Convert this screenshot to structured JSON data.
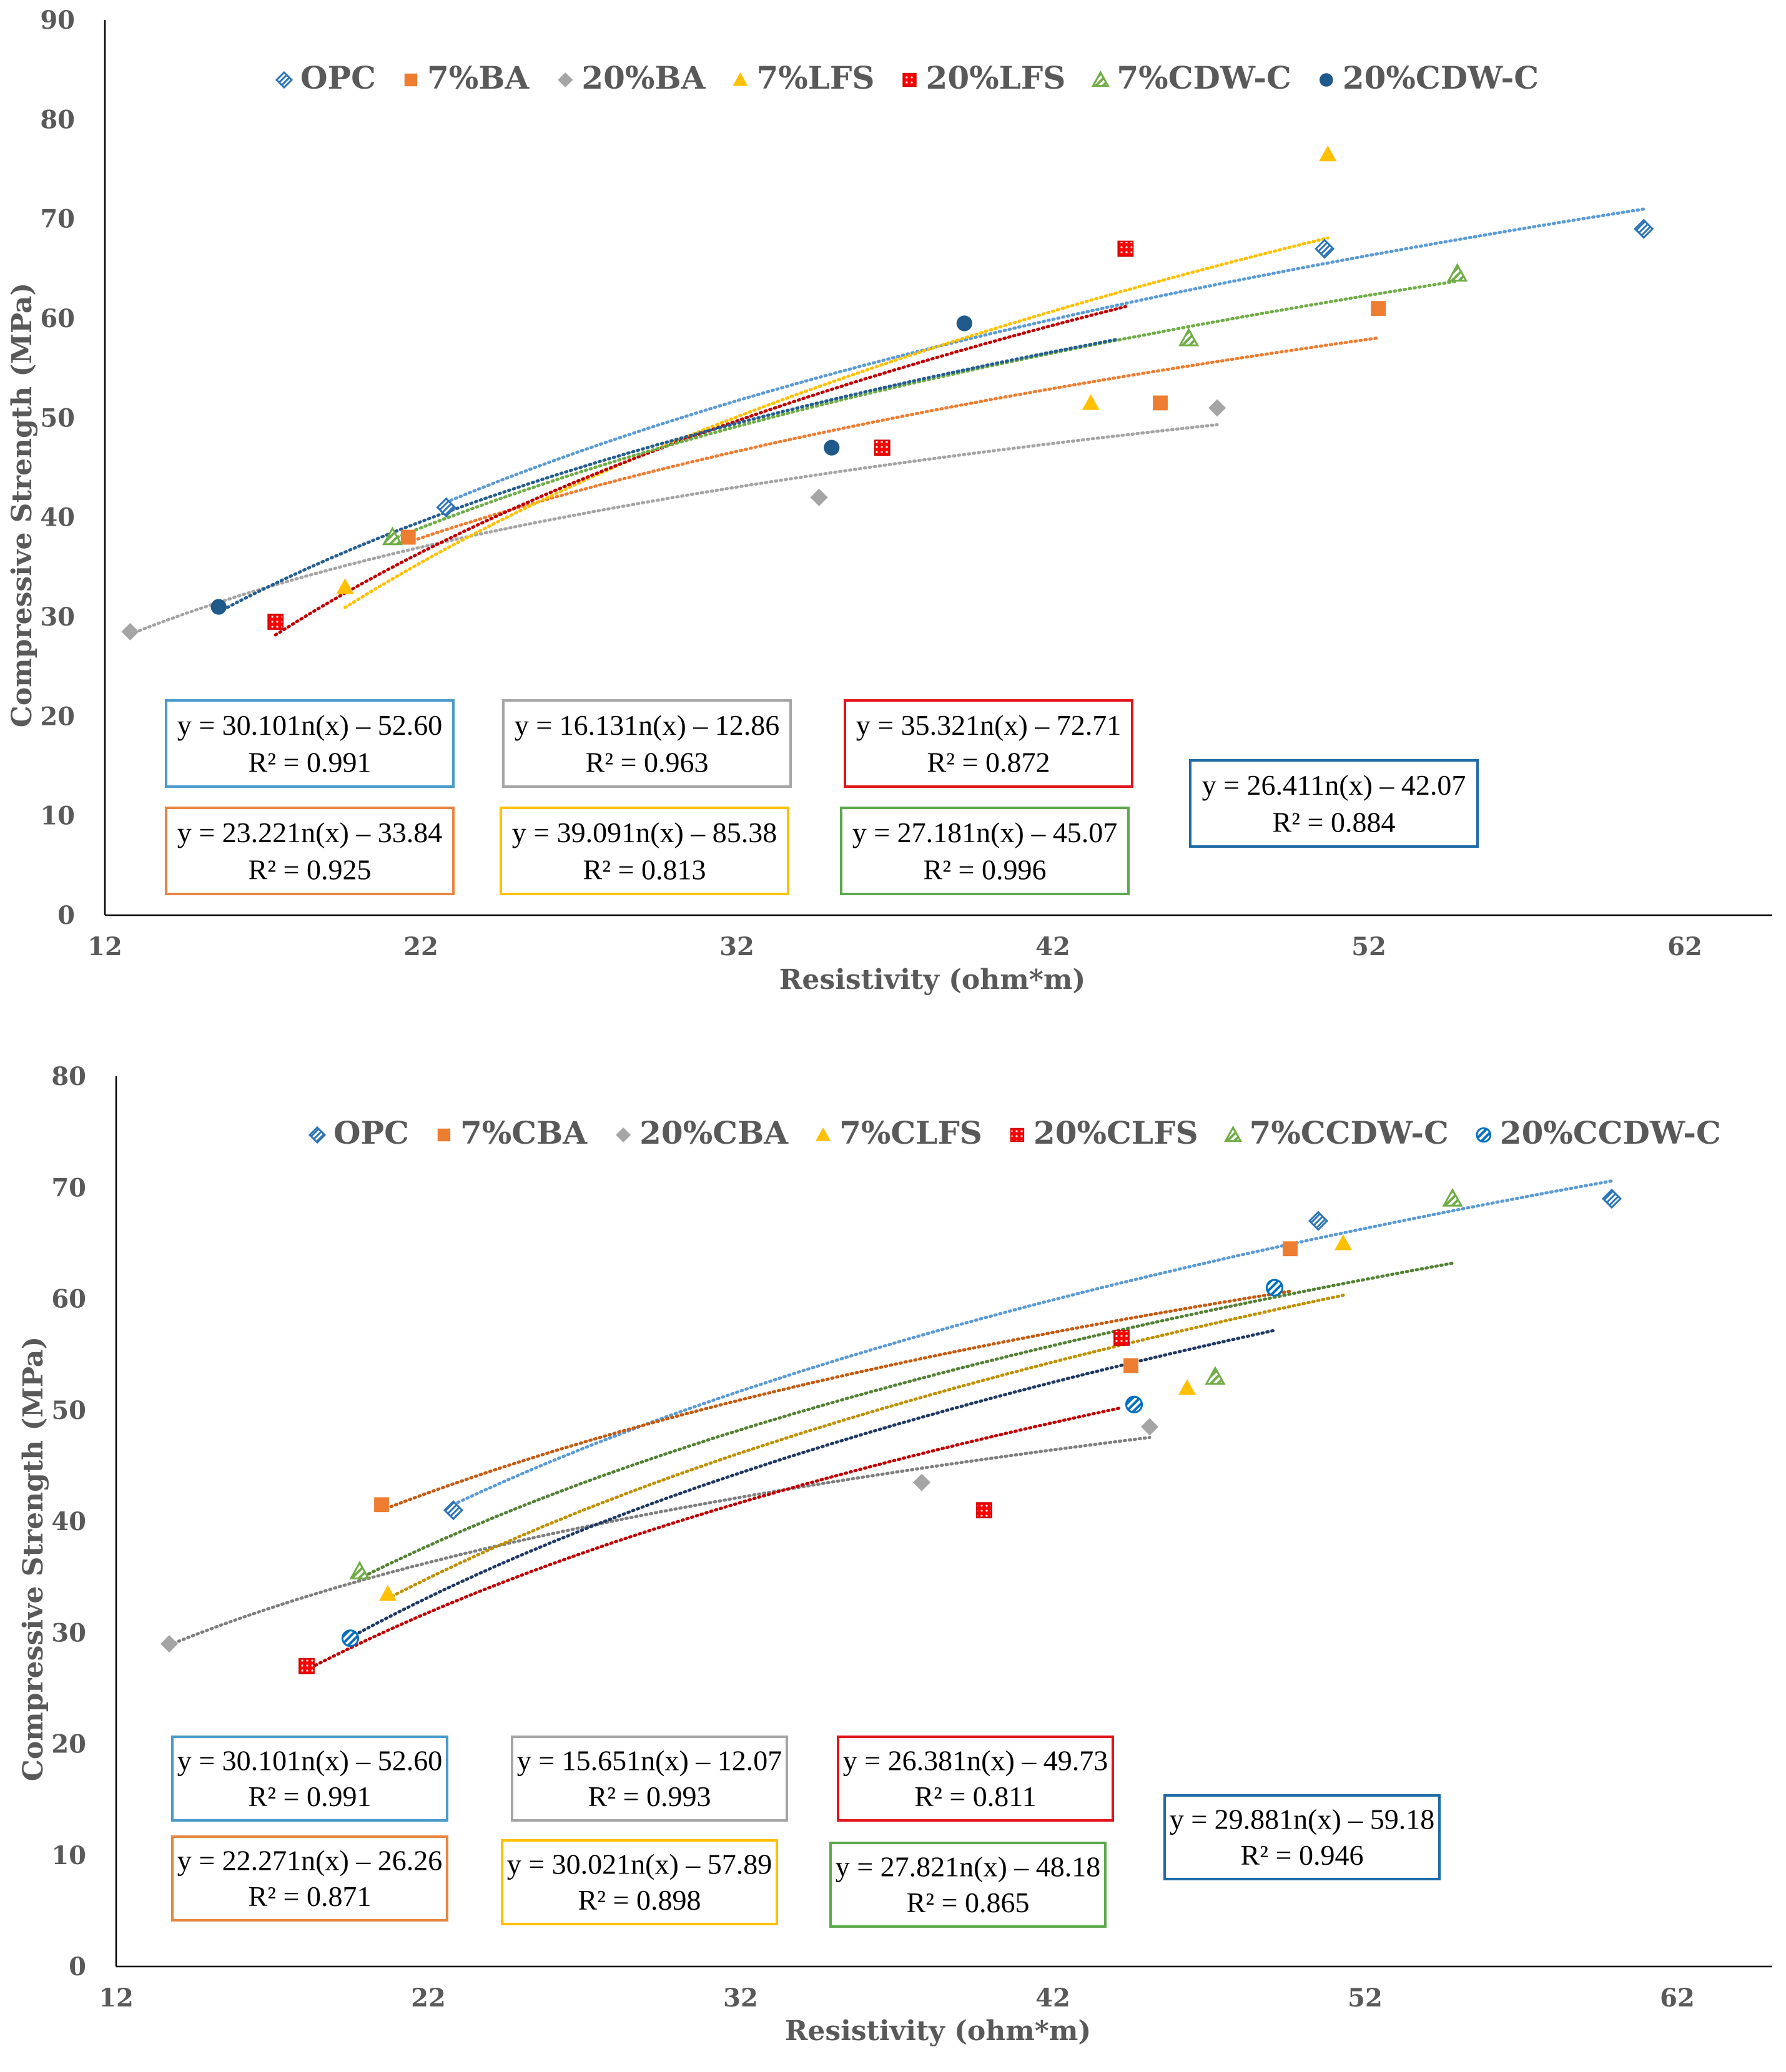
{
  "chart_data": [
    {
      "type": "scatter",
      "title": "",
      "xlabel": "Resistivity (ohm*m)",
      "ylabel": "Compressive Strength (MPa)",
      "xlim": [
        12,
        65
      ],
      "ylim": [
        0,
        90
      ],
      "x_ticks": [
        "12",
        "22",
        "32",
        "42",
        "52",
        "62"
      ],
      "y_ticks": [
        "0",
        "10",
        "20",
        "30",
        "40",
        "50",
        "60",
        "70",
        "80",
        "90"
      ],
      "legend_position": "top",
      "series": [
        {
          "name": "OPC",
          "marker": "diamond-open",
          "color": "#2E75B6",
          "trend_color": "#5B9BD5",
          "points": [
            [
              22.8,
              41
            ],
            [
              50.6,
              67
            ],
            [
              60.7,
              69
            ]
          ],
          "fit": {
            "a": 30.1,
            "b": -52.6,
            "range": [
              22.8,
              60.7
            ]
          },
          "equation": "y = 30.101n(x) – 52.60",
          "r2": "R² = 0.991",
          "box_color": "#4A9BCB"
        },
        {
          "name": "7%BA",
          "marker": "square",
          "color": "#ED7D31",
          "trend_color": "#ED7D31",
          "points": [
            [
              21.6,
              38
            ],
            [
              45.4,
              51.5
            ],
            [
              52.3,
              61
            ]
          ],
          "fit": {
            "a": 23.22,
            "b": -33.84,
            "range": [
              21.6,
              52.3
            ]
          },
          "equation": "y = 23.221n(x) – 33.84",
          "r2": "R² = 0.925",
          "box_color": "#E88541"
        },
        {
          "name": "20%BA",
          "marker": "diamond",
          "color": "#A5A5A5",
          "trend_color": "#A5A5A5",
          "points": [
            [
              12.8,
              28.5
            ],
            [
              34.6,
              42
            ],
            [
              47.2,
              51
            ]
          ],
          "fit": {
            "a": 16.13,
            "b": -12.86,
            "range": [
              12.8,
              47.2
            ]
          },
          "equation": "y = 16.131n(x) – 12.86",
          "r2": "R² = 0.963",
          "box_color": "#A5A5A5"
        },
        {
          "name": "7%LFS",
          "marker": "triangle",
          "color": "#FFC000",
          "trend_color": "#FFC000",
          "points": [
            [
              19.6,
              33
            ],
            [
              43.2,
              51.5
            ],
            [
              50.7,
              76.5
            ]
          ],
          "fit": {
            "a": 39.09,
            "b": -85.38,
            "range": [
              19.6,
              50.7
            ]
          },
          "equation": "y = 39.091n(x) – 85.38",
          "r2": "R² = 0.813",
          "box_color": "#FFC000"
        },
        {
          "name": "20%LFS",
          "marker": "square-dotted",
          "color": "#FF0000",
          "trend_color": "#C00000",
          "points": [
            [
              17.4,
              29.5
            ],
            [
              36.6,
              47
            ],
            [
              44.3,
              67
            ]
          ],
          "fit": {
            "a": 35.32,
            "b": -72.71,
            "range": [
              17.4,
              44.3
            ]
          },
          "equation": "y = 35.321n(x) – 72.71",
          "r2": "R² = 0.872",
          "box_color": "#E2141B"
        },
        {
          "name": "7%CDW-C",
          "marker": "triangle-hatched",
          "color": "#70AD47",
          "trend_color": "#70AD47",
          "points": [
            [
              21.1,
              38
            ],
            [
              46.3,
              58
            ],
            [
              54.8,
              64.5
            ]
          ],
          "fit": {
            "a": 27.18,
            "b": -45.07,
            "range": [
              21.1,
              54.8
            ]
          },
          "equation": "y = 27.181n(x) – 45.07",
          "r2": "R² = 0.996",
          "box_color": "#5DA84C"
        },
        {
          "name": "20%CDW-C",
          "marker": "circle",
          "color": "#1F5A8A",
          "trend_color": "#255E91",
          "points": [
            [
              15.6,
              31
            ],
            [
              35.0,
              47
            ],
            [
              39.2,
              59.5
            ]
          ],
          "fit": {
            "a": 26.41,
            "b": -42.07,
            "range": [
              15.6,
              44.0
            ]
          },
          "equation": "y = 26.411n(x) – 42.07",
          "r2": "R² = 0.884",
          "box_color": "#1E6AA6"
        }
      ]
    },
    {
      "type": "scatter",
      "title": "",
      "xlabel": "Resistivity (ohm*m)",
      "ylabel": "Compressive Strength (MPa)",
      "xlim": [
        12,
        64.5
      ],
      "ylim": [
        0,
        80
      ],
      "x_ticks": [
        "12",
        "22",
        "32",
        "42",
        "52",
        "62"
      ],
      "y_ticks": [
        "0",
        "10",
        "20",
        "30",
        "40",
        "50",
        "60",
        "70",
        "80"
      ],
      "legend_position": "top",
      "series": [
        {
          "name": "OPC",
          "marker": "diamond-open",
          "color": "#2E75B6",
          "trend_color": "#5B9BD5",
          "points": [
            [
              22.8,
              41
            ],
            [
              50.5,
              67
            ],
            [
              59.9,
              69
            ]
          ],
          "fit": {
            "a": 30.1,
            "b": -52.6,
            "range": [
              22.8,
              59.9
            ]
          },
          "equation": "y = 30.101n(x) – 52.60",
          "r2": "R² = 0.991",
          "box_color": "#4A9BCB"
        },
        {
          "name": "7%CBA",
          "marker": "square",
          "color": "#ED7D31",
          "trend_color": "#C55A11",
          "points": [
            [
              20.5,
              41.5
            ],
            [
              44.5,
              54
            ],
            [
              49.6,
              64.5
            ]
          ],
          "fit": {
            "a": 22.27,
            "b": -26.26,
            "range": [
              20.5,
              49.6
            ]
          },
          "equation": "y = 22.271n(x) – 26.26",
          "r2": "R² = 0.871",
          "box_color": "#E88541"
        },
        {
          "name": "20%CBA",
          "marker": "diamond",
          "color": "#A5A5A5",
          "trend_color": "#7F7F7F",
          "points": [
            [
              13.7,
              29
            ],
            [
              37.8,
              43.5
            ],
            [
              45.1,
              48.5
            ]
          ],
          "fit": {
            "a": 15.65,
            "b": -12.07,
            "range": [
              13.7,
              45.1
            ]
          },
          "equation": "y = 15.651n(x) – 12.07",
          "r2": "R² = 0.993",
          "box_color": "#A5A5A5"
        },
        {
          "name": "7%CLFS",
          "marker": "triangle",
          "color": "#FFC000",
          "trend_color": "#BF9000",
          "points": [
            [
              20.7,
              33.5
            ],
            [
              46.3,
              52
            ],
            [
              51.3,
              65
            ]
          ],
          "fit": {
            "a": 30.02,
            "b": -57.89,
            "range": [
              20.7,
              51.3
            ]
          },
          "equation": "y = 30.021n(x) – 57.89",
          "r2": "R² = 0.898",
          "box_color": "#FFC000"
        },
        {
          "name": "20%CLFS",
          "marker": "square-dotted",
          "color": "#FF0000",
          "trend_color": "#C00000",
          "points": [
            [
              18.1,
              27
            ],
            [
              39.8,
              41
            ],
            [
              44.2,
              56.5
            ]
          ],
          "fit": {
            "a": 26.38,
            "b": -49.73,
            "range": [
              18.1,
              44.2
            ]
          },
          "equation": "y = 26.381n(x) – 49.73",
          "r2": "R² = 0.811",
          "box_color": "#E2141B"
        },
        {
          "name": "7%CCDW-C",
          "marker": "triangle-hatched",
          "color": "#70AD47",
          "trend_color": "#548235",
          "points": [
            [
              19.8,
              35.5
            ],
            [
              47.2,
              53
            ],
            [
              54.8,
              69
            ]
          ],
          "fit": {
            "a": 27.82,
            "b": -48.18,
            "range": [
              19.8,
              54.8
            ]
          },
          "equation": "y = 27.821n(x) – 48.18",
          "r2": "R² = 0.865",
          "box_color": "#5DA84C"
        },
        {
          "name": "20%CCDW-C",
          "marker": "circle-hatched",
          "color": "#0070C0",
          "trend_color": "#1F3864",
          "points": [
            [
              19.5,
              29.5
            ],
            [
              44.6,
              50.5
            ],
            [
              49.1,
              61
            ]
          ],
          "fit": {
            "a": 29.88,
            "b": -59.18,
            "range": [
              19.5,
              49.1
            ]
          },
          "equation": "y = 29.881n(x) – 59.18",
          "r2": "R² = 0.946",
          "box_color": "#1E6AA6"
        }
      ]
    }
  ]
}
